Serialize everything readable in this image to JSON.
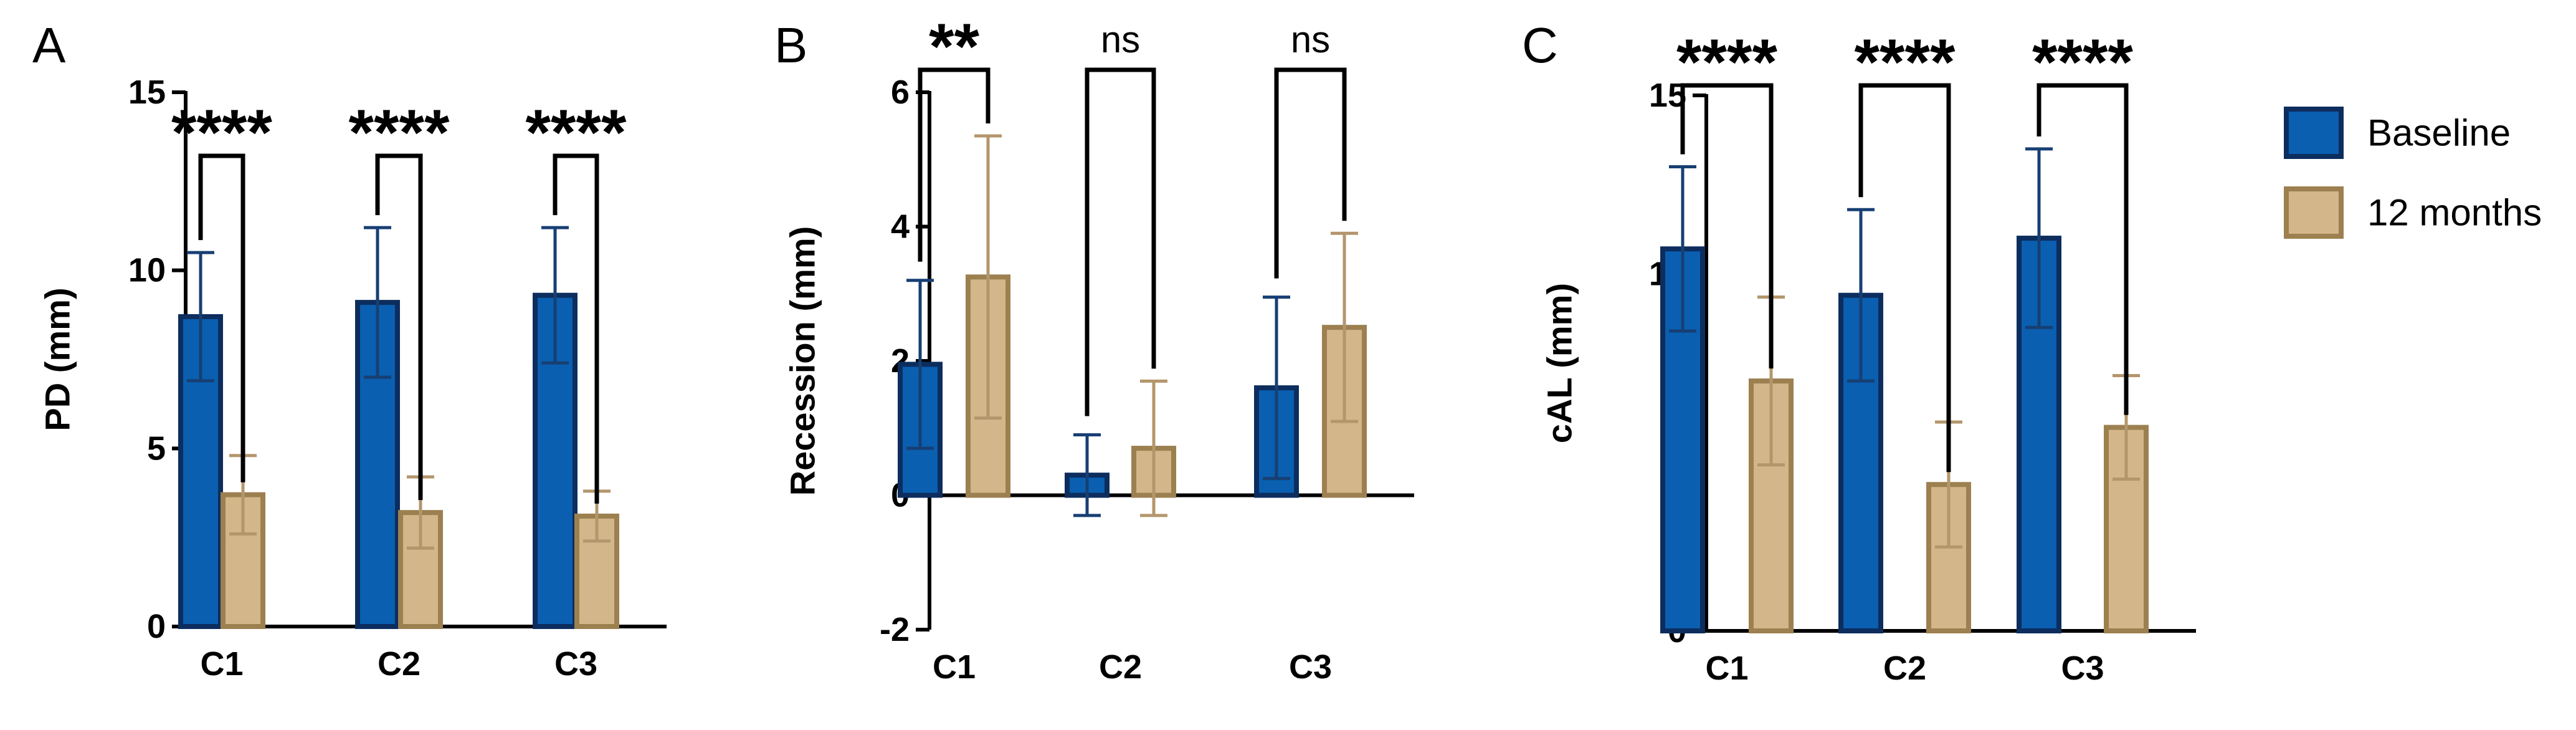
{
  "chart_data": [
    {
      "panel": "A",
      "type": "bar",
      "ylabel": "PD (mm)",
      "ylim": [
        0,
        15
      ],
      "yticks": [
        0,
        5,
        10,
        15
      ],
      "categories": [
        "C1",
        "C2",
        "C3"
      ],
      "series": [
        {
          "name": "Baseline",
          "values": [
            8.7,
            9.1,
            9.3
          ],
          "errors": [
            1.8,
            2.1,
            1.9
          ]
        },
        {
          "name": "12 months",
          "values": [
            3.7,
            3.2,
            3.1
          ],
          "errors": [
            1.1,
            1.0,
            0.7
          ]
        }
      ],
      "significance": [
        "****",
        "****",
        "****"
      ]
    },
    {
      "panel": "B",
      "type": "bar",
      "ylabel": "Recession (mm)",
      "ylim": [
        -2,
        6
      ],
      "yticks": [
        -2,
        0,
        2,
        4,
        6
      ],
      "categories": [
        "C1",
        "C2",
        "C3"
      ],
      "series": [
        {
          "name": "Baseline",
          "values": [
            1.95,
            0.3,
            1.6
          ],
          "errors": [
            1.25,
            0.6,
            1.35
          ]
        },
        {
          "name": "12 months",
          "values": [
            3.25,
            0.7,
            2.5
          ],
          "errors": [
            2.1,
            1.0,
            1.4
          ]
        }
      ],
      "significance": [
        "**",
        "ns",
        "ns"
      ]
    },
    {
      "panel": "C",
      "type": "bar",
      "ylabel": "cAL (mm)",
      "ylim": [
        0,
        15
      ],
      "yticks": [
        0,
        5,
        10,
        15
      ],
      "categories": [
        "C1",
        "C2",
        "C3"
      ],
      "series": [
        {
          "name": "Baseline",
          "values": [
            10.7,
            9.4,
            11.0
          ],
          "errors": [
            2.3,
            2.4,
            2.5
          ]
        },
        {
          "name": "12 months",
          "values": [
            7.0,
            4.1,
            5.7
          ],
          "errors": [
            2.35,
            1.75,
            1.45
          ]
        }
      ],
      "significance": [
        "****",
        "****",
        "****"
      ]
    }
  ],
  "legend": {
    "items": [
      {
        "label": "Baseline",
        "fill": "#0a5fb0",
        "stroke": "#0c2d5e"
      },
      {
        "label": "12 months",
        "fill": "#d3b689",
        "stroke": "#9c8050"
      }
    ]
  },
  "colors": {
    "baseline_fill": "#0a5fb0",
    "baseline_stroke": "#0c2d5e",
    "baseline_error": "#173f73",
    "followup_fill": "#d3b689",
    "followup_stroke": "#9c8050",
    "followup_error": "#b3966b"
  }
}
